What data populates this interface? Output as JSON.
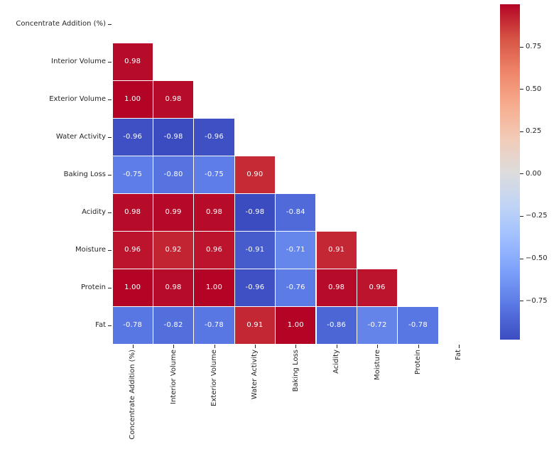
{
  "figure": {
    "background_color": "#ffffff",
    "text_color": "#262626"
  },
  "chart_data": {
    "type": "heatmap",
    "subtype": "lower-triangle-correlation-matrix",
    "title": "",
    "variables": [
      "Concentrate Addition (%)",
      "Interior Volume",
      "Exterior Volume",
      "Water Activity",
      "Baking Loss",
      "Acidity",
      "Moisture",
      "Protein",
      "Fat"
    ],
    "matrix": [
      [
        null,
        null,
        null,
        null,
        null,
        null,
        null,
        null,
        null
      ],
      [
        0.98,
        null,
        null,
        null,
        null,
        null,
        null,
        null,
        null
      ],
      [
        1.0,
        0.98,
        null,
        null,
        null,
        null,
        null,
        null,
        null
      ],
      [
        -0.96,
        -0.98,
        -0.96,
        null,
        null,
        null,
        null,
        null,
        null
      ],
      [
        -0.75,
        -0.8,
        -0.75,
        0.9,
        null,
        null,
        null,
        null,
        null
      ],
      [
        0.98,
        0.99,
        0.98,
        -0.98,
        -0.84,
        null,
        null,
        null,
        null
      ],
      [
        0.96,
        0.92,
        0.96,
        -0.91,
        -0.71,
        0.91,
        null,
        null,
        null
      ],
      [
        1.0,
        0.98,
        1.0,
        -0.96,
        -0.76,
        0.98,
        0.96,
        null,
        null
      ],
      [
        -0.78,
        -0.82,
        -0.78,
        0.91,
        1.0,
        -0.86,
        -0.72,
        -0.78,
        null
      ]
    ],
    "value_decimals": 2,
    "vmin": -0.98,
    "vmax": 1.0,
    "colormap": "coolwarm",
    "colormap_anchors": [
      "#3b4cc0",
      "#5977e3",
      "#7b9ff9",
      "#9ebeff",
      "#c0d4f5",
      "#dddcdc",
      "#f2cbb7",
      "#f7ac8e",
      "#ee8468",
      "#d65244",
      "#b40426"
    ],
    "cell_text_color": "#ffffff",
    "cell_border_color": "#ffffff",
    "grid": false,
    "legend_position": "right-colorbar",
    "colorbar_ticks": [
      {
        "value": 0.75,
        "label": "0.75"
      },
      {
        "value": 0.5,
        "label": "0.50"
      },
      {
        "value": 0.25,
        "label": "0.25"
      },
      {
        "value": 0.0,
        "label": "0.00"
      },
      {
        "value": -0.25,
        "label": "−0.25"
      },
      {
        "value": -0.5,
        "label": "−0.50"
      },
      {
        "value": -0.75,
        "label": "−0.75"
      }
    ]
  }
}
